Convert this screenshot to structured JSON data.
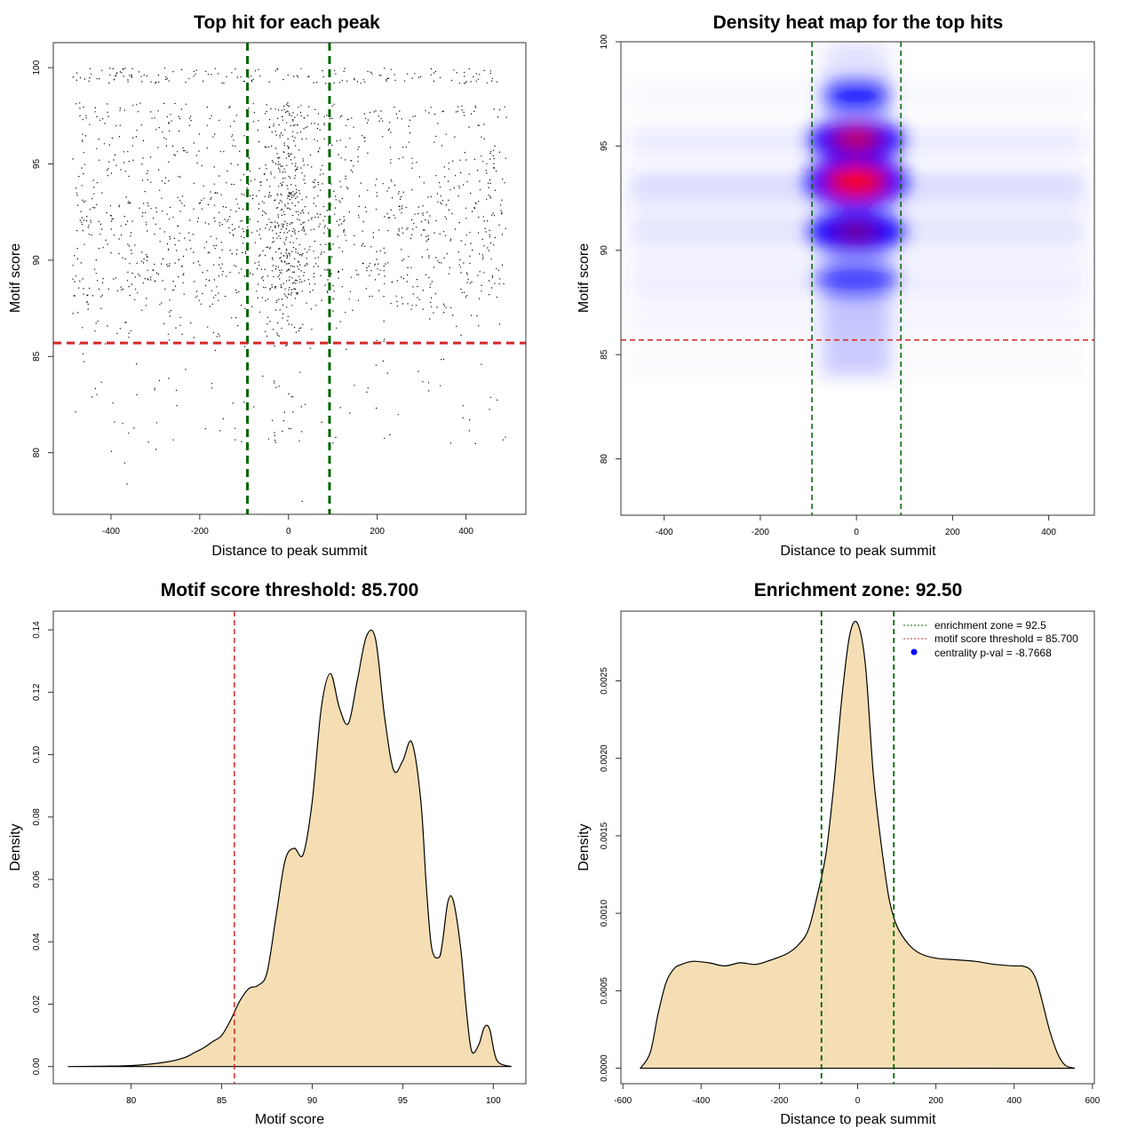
{
  "chart_data": [
    {
      "type": "scatter",
      "title": "Top hit for each peak",
      "xlabel": "Distance to peak summit",
      "ylabel": "Motif score",
      "xlim": [
        -530,
        535
      ],
      "ylim": [
        76.8,
        101.3
      ],
      "xticks": [
        -400,
        -200,
        0,
        200,
        400
      ],
      "yticks": [
        80,
        85,
        90,
        95,
        100
      ],
      "threshold_hline": 85.7,
      "zone_vlines": [
        -92.5,
        92.5
      ],
      "points_summary": {
        "x_range": [
          -490,
          490
        ],
        "y_range": [
          77.5,
          100
        ],
        "n_approx": 20000,
        "center_peak": [
          0,
          93.5
        ]
      }
    },
    {
      "type": "heatmap",
      "title": "Density heat map for the top hits",
      "xlabel": "Distance to peak summit",
      "ylabel": "Motif score",
      "xlim": [
        -490,
        495
      ],
      "ylim": [
        77.3,
        100
      ],
      "xticks": [
        -400,
        -200,
        0,
        200,
        400
      ],
      "yticks": [
        80,
        85,
        90,
        95,
        100
      ],
      "threshold_hline": 85.7,
      "zone_vlines": [
        -92.5,
        92.5
      ],
      "hotspots": [
        {
          "x": 0,
          "y": 93.3
        },
        {
          "x": 0,
          "y": 95.3
        },
        {
          "x": 0,
          "y": 90.9
        },
        {
          "x": 0,
          "y": 97.4
        }
      ]
    },
    {
      "type": "area",
      "title": "Motif score threshold: 85.700",
      "xlabel": "Motif score",
      "ylabel": "Density",
      "xlim": [
        75.7,
        101.8
      ],
      "ylim": [
        -0.0055,
        0.146
      ],
      "xticks": [
        80,
        85,
        90,
        95,
        100
      ],
      "yticks": [
        0.0,
        0.02,
        0.04,
        0.06,
        0.08,
        0.1,
        0.12,
        0.14
      ],
      "threshold_vline": 85.7,
      "x": [
        76.5,
        80,
        82,
        83,
        83.5,
        84,
        84.5,
        85,
        85.5,
        86,
        86.5,
        87,
        87.5,
        88,
        88.5,
        89,
        89.5,
        90,
        90.5,
        91,
        91.5,
        92,
        92.5,
        93,
        93.5,
        94,
        94.5,
        95,
        95.5,
        96,
        96.3,
        96.6,
        97,
        97.2,
        97.5,
        97.8,
        98.2,
        98.5,
        98.8,
        99.2,
        99.5,
        99.8,
        100.2,
        101
      ],
      "y": [
        0,
        0.0003,
        0.0015,
        0.003,
        0.0045,
        0.006,
        0.008,
        0.01,
        0.015,
        0.021,
        0.025,
        0.026,
        0.03,
        0.048,
        0.066,
        0.07,
        0.068,
        0.085,
        0.115,
        0.126,
        0.115,
        0.11,
        0.124,
        0.138,
        0.137,
        0.112,
        0.095,
        0.098,
        0.104,
        0.085,
        0.058,
        0.038,
        0.035,
        0.04,
        0.053,
        0.053,
        0.038,
        0.019,
        0.005,
        0.007,
        0.0125,
        0.012,
        0.002,
        0
      ]
    },
    {
      "type": "area",
      "title": "Enrichment zone: 92.50",
      "xlabel": "Distance to peak summit",
      "ylabel": "Density",
      "xlim": [
        -605,
        605
      ],
      "ylim": [
        -0.0001,
        0.00295
      ],
      "xticks": [
        -600,
        -400,
        -200,
        0,
        200,
        400,
        600
      ],
      "yticks": [
        0.0,
        0.0005,
        0.001,
        0.0015,
        0.002,
        0.0025
      ],
      "tick_labels": [
        "0.0000",
        "0.0005",
        "0.0010",
        "0.0015",
        "0.0020",
        "0.0025"
      ],
      "zone_vlines": [
        -92.5,
        92.5
      ],
      "x": [
        -555,
        -530,
        -510,
        -490,
        -470,
        -450,
        -420,
        -380,
        -340,
        -300,
        -260,
        -220,
        -180,
        -150,
        -125,
        -100,
        -80,
        -60,
        -40,
        -20,
        0,
        20,
        40,
        60,
        80,
        100,
        130,
        160,
        200,
        250,
        300,
        350,
        400,
        420,
        440,
        455,
        470,
        490,
        510,
        530,
        555
      ],
      "y": [
        0,
        0.0001,
        0.00035,
        0.00055,
        0.00064,
        0.00067,
        0.00069,
        0.00068,
        0.00066,
        0.00068,
        0.00067,
        0.0007,
        0.00074,
        0.0008,
        0.0009,
        0.00115,
        0.0014,
        0.00185,
        0.0024,
        0.0028,
        0.00287,
        0.0026,
        0.0019,
        0.00145,
        0.0011,
        0.00092,
        0.0008,
        0.00074,
        0.00071,
        0.0007,
        0.00069,
        0.00067,
        0.00066,
        0.00066,
        0.00064,
        0.00058,
        0.00045,
        0.00025,
        0.0001,
        2e-05,
        0
      ],
      "legend": [
        {
          "label": "enrichment zone = 92.5",
          "color": "#006400",
          "style": "dotted"
        },
        {
          "label": "motif score threshold = 85.700",
          "color": "#d62728",
          "style": "dotted"
        },
        {
          "label": "centrality p-val = -8.7668",
          "color": "#0000ff",
          "style": "dot"
        }
      ]
    }
  ],
  "colors": {
    "fill": "#f5deb3",
    "zone": "#006400",
    "threshold": "#d62728",
    "heat_low": "#ffffff",
    "heat_mid": "#0000ff",
    "heat_high": "#ff0000"
  }
}
